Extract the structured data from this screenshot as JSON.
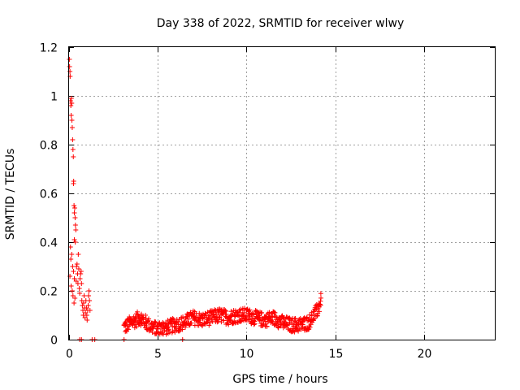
{
  "chart_data": {
    "type": "scatter",
    "title": "Day 338 of 2022, SRMTID for receiver wlwy",
    "xlabel": "GPS time / hours",
    "ylabel": "SRMTID / TECUs",
    "xlim": [
      0,
      24
    ],
    "ylim": [
      0,
      1.2
    ],
    "xticks": [
      0,
      5,
      10,
      15,
      20
    ],
    "xtick_labels": [
      "0",
      "5",
      "10",
      "15",
      "20"
    ],
    "yticks": [
      0,
      0.2,
      0.4,
      0.6,
      0.8,
      1.0,
      1.2
    ],
    "ytick_labels": [
      "0",
      "0.2",
      "0.4",
      "0.6",
      "0.8",
      "1",
      "1.2"
    ],
    "grid": true,
    "marker": "+",
    "color": "#ff0000",
    "series": [
      {
        "name": "SRMTID",
        "points": [
          [
            0.02,
            1.15
          ],
          [
            0.03,
            1.12
          ],
          [
            0.05,
            1.1
          ],
          [
            0.06,
            1.08
          ],
          [
            0.08,
            0.98
          ],
          [
            0.1,
            0.96
          ],
          [
            0.12,
            0.92
          ],
          [
            0.13,
            0.99
          ],
          [
            0.15,
            0.97
          ],
          [
            0.16,
            0.9
          ],
          [
            0.18,
            0.87
          ],
          [
            0.2,
            0.82
          ],
          [
            0.22,
            0.78
          ],
          [
            0.24,
            0.75
          ],
          [
            0.25,
            0.64
          ],
          [
            0.26,
            0.65
          ],
          [
            0.28,
            0.55
          ],
          [
            0.3,
            0.52
          ],
          [
            0.32,
            0.54
          ],
          [
            0.34,
            0.5
          ],
          [
            0.36,
            0.47
          ],
          [
            0.38,
            0.45
          ],
          [
            0.3,
            0.41
          ],
          [
            0.35,
            0.4
          ],
          [
            0.08,
            0.38
          ],
          [
            0.1,
            0.33
          ],
          [
            0.15,
            0.35
          ],
          [
            0.2,
            0.3
          ],
          [
            0.25,
            0.28
          ],
          [
            0.3,
            0.25
          ],
          [
            0.05,
            0.26
          ],
          [
            0.12,
            0.22
          ],
          [
            0.18,
            0.2
          ],
          [
            0.22,
            0.18
          ],
          [
            0.28,
            0.15
          ],
          [
            0.33,
            0.17
          ],
          [
            0.4,
            0.24
          ],
          [
            0.42,
            0.3
          ],
          [
            0.45,
            0.31
          ],
          [
            0.48,
            0.27
          ],
          [
            0.5,
            0.23
          ],
          [
            0.52,
            0.35
          ],
          [
            0.55,
            0.29
          ],
          [
            0.58,
            0.21
          ],
          [
            0.6,
            0.19
          ],
          [
            0.62,
            0.25
          ],
          [
            0.65,
            0.27
          ],
          [
            0.68,
            0.28
          ],
          [
            0.7,
            0.23
          ],
          [
            0.72,
            0.16
          ],
          [
            0.75,
            0.14
          ],
          [
            0.78,
            0.12
          ],
          [
            0.8,
            0.1
          ],
          [
            0.82,
            0.15
          ],
          [
            0.85,
            0.18
          ],
          [
            0.88,
            0.13
          ],
          [
            0.9,
            0.09
          ],
          [
            0.92,
            0.11
          ],
          [
            0.95,
            0.16
          ],
          [
            0.98,
            0.13
          ],
          [
            1.0,
            0.1
          ],
          [
            1.02,
            0.08
          ],
          [
            1.05,
            0.12
          ],
          [
            1.08,
            0.14
          ],
          [
            1.1,
            0.18
          ],
          [
            1.12,
            0.2
          ],
          [
            1.15,
            0.16
          ],
          [
            1.18,
            0.12
          ],
          [
            0.6,
            0.0
          ],
          [
            0.7,
            0.0
          ],
          [
            1.3,
            0.0
          ],
          [
            1.45,
            0.0
          ],
          [
            3.1,
            0.0
          ],
          [
            6.4,
            0.0
          ]
        ],
        "band": {
          "comment": "dense noisy band of points between 3.1 h and 14.2 h",
          "x_start": 3.1,
          "x_end": 14.2,
          "x_step": 0.05,
          "centerline": [
            [
              3.1,
              0.05
            ],
            [
              3.5,
              0.07
            ],
            [
              4.0,
              0.09
            ],
            [
              4.5,
              0.06
            ],
            [
              5.0,
              0.04
            ],
            [
              5.5,
              0.05
            ],
            [
              6.0,
              0.06
            ],
            [
              6.5,
              0.07
            ],
            [
              7.0,
              0.09
            ],
            [
              7.5,
              0.08
            ],
            [
              8.0,
              0.09
            ],
            [
              8.5,
              0.1
            ],
            [
              9.0,
              0.09
            ],
            [
              9.5,
              0.1
            ],
            [
              10.0,
              0.1
            ],
            [
              10.5,
              0.09
            ],
            [
              11.0,
              0.08
            ],
            [
              11.5,
              0.09
            ],
            [
              12.0,
              0.07
            ],
            [
              12.5,
              0.06
            ],
            [
              13.0,
              0.06
            ],
            [
              13.5,
              0.07
            ],
            [
              14.0,
              0.12
            ],
            [
              14.2,
              0.16
            ]
          ],
          "spread": 0.03
        }
      }
    ]
  }
}
